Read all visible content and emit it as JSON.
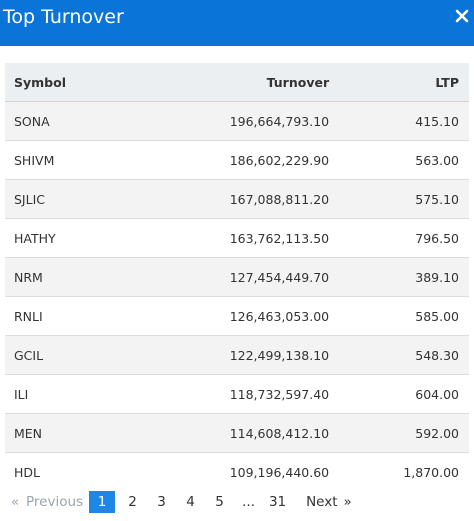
{
  "header": {
    "title": "Top Turnover",
    "close_icon": "close-icon"
  },
  "table": {
    "columns": [
      "Symbol",
      "Turnover",
      "LTP"
    ],
    "rows": [
      {
        "symbol": "SONA",
        "turnover": "196,664,793.10",
        "ltp": "415.10"
      },
      {
        "symbol": "SHIVM",
        "turnover": "186,602,229.90",
        "ltp": "563.00"
      },
      {
        "symbol": "SJLIC",
        "turnover": "167,088,811.20",
        "ltp": "575.10"
      },
      {
        "symbol": "HATHY",
        "turnover": "163,762,113.50",
        "ltp": "796.50"
      },
      {
        "symbol": "NRM",
        "turnover": "127,454,449.70",
        "ltp": "389.10"
      },
      {
        "symbol": "RNLI",
        "turnover": "126,463,053.00",
        "ltp": "585.00"
      },
      {
        "symbol": "GCIL",
        "turnover": "122,499,138.10",
        "ltp": "548.30"
      },
      {
        "symbol": "ILI",
        "turnover": "118,732,597.40",
        "ltp": "604.00"
      },
      {
        "symbol": "MEN",
        "turnover": "114,608,412.10",
        "ltp": "592.00"
      },
      {
        "symbol": "HDL",
        "turnover": "109,196,440.60",
        "ltp": "1,870.00"
      }
    ]
  },
  "pagination": {
    "first_arrow": "«",
    "previous": "Previous",
    "pages": [
      "1",
      "2",
      "3",
      "4",
      "5",
      "...",
      "31"
    ],
    "current": "1",
    "next": "Next",
    "last_arrow": "»"
  },
  "colors": {
    "header_bg": "#0a74d8",
    "active_page": "#1e87e5",
    "table_header_bg": "#eceff2",
    "stripe": "#f3f3f3"
  }
}
